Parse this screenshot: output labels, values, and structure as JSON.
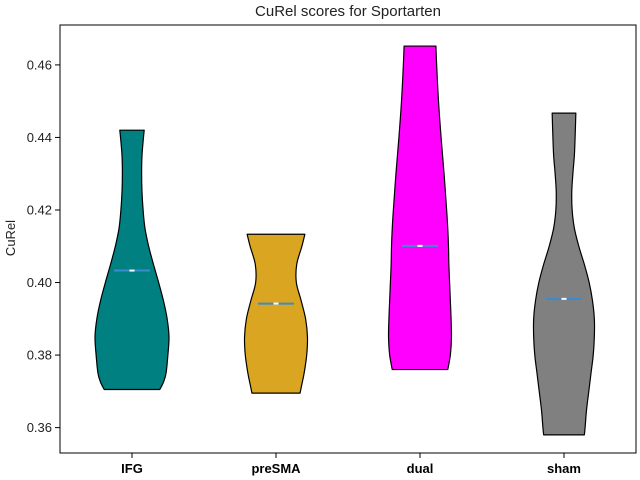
{
  "chart_data": {
    "type": "violin",
    "title": "CuRel scores for Sportarten",
    "xlabel": "",
    "ylabel": "CuRel",
    "categories": [
      "IFG",
      "preSMA",
      "dual",
      "sham"
    ],
    "ylim": [
      0.353,
      0.471
    ],
    "yticks": [
      0.36,
      0.38,
      0.4,
      0.42,
      0.44,
      0.46
    ],
    "ytick_labels": [
      "0.36",
      "0.38",
      "0.40",
      "0.42",
      "0.44",
      "0.46"
    ],
    "grid": false,
    "series": [
      {
        "category": "IFG",
        "color": "#008080",
        "min": 0.3705,
        "max": 0.442,
        "median": 0.4033,
        "profile": [
          [
            0.3705,
            0.75
          ],
          [
            0.3725,
            0.85
          ],
          [
            0.375,
            0.92
          ],
          [
            0.38,
            0.97
          ],
          [
            0.385,
            1.0
          ],
          [
            0.39,
            0.95
          ],
          [
            0.395,
            0.85
          ],
          [
            0.4,
            0.72
          ],
          [
            0.405,
            0.58
          ],
          [
            0.41,
            0.45
          ],
          [
            0.415,
            0.35
          ],
          [
            0.42,
            0.3
          ],
          [
            0.425,
            0.27
          ],
          [
            0.43,
            0.26
          ],
          [
            0.435,
            0.27
          ],
          [
            0.44,
            0.31
          ],
          [
            0.442,
            0.33
          ]
        ]
      },
      {
        "category": "preSMA",
        "color": "#DAA520",
        "min": 0.3695,
        "max": 0.4133,
        "median": 0.3942,
        "profile": [
          [
            0.3695,
            0.65
          ],
          [
            0.372,
            0.7
          ],
          [
            0.375,
            0.76
          ],
          [
            0.38,
            0.83
          ],
          [
            0.385,
            0.85
          ],
          [
            0.39,
            0.8
          ],
          [
            0.395,
            0.68
          ],
          [
            0.4,
            0.55
          ],
          [
            0.405,
            0.56
          ],
          [
            0.41,
            0.7
          ],
          [
            0.4133,
            0.78
          ]
        ]
      },
      {
        "category": "dual",
        "color": "#FF00FF",
        "min": 0.376,
        "max": 0.4652,
        "median": 0.4101,
        "profile": [
          [
            0.376,
            0.75
          ],
          [
            0.38,
            0.82
          ],
          [
            0.385,
            0.85
          ],
          [
            0.39,
            0.84
          ],
          [
            0.395,
            0.82
          ],
          [
            0.4,
            0.8
          ],
          [
            0.405,
            0.78
          ],
          [
            0.41,
            0.77
          ],
          [
            0.415,
            0.75
          ],
          [
            0.42,
            0.72
          ],
          [
            0.43,
            0.65
          ],
          [
            0.44,
            0.57
          ],
          [
            0.45,
            0.5
          ],
          [
            0.46,
            0.45
          ],
          [
            0.4652,
            0.43
          ]
        ]
      },
      {
        "category": "sham",
        "color": "#808080",
        "min": 0.358,
        "max": 0.4467,
        "median": 0.3955,
        "profile": [
          [
            0.358,
            0.55
          ],
          [
            0.36,
            0.57
          ],
          [
            0.365,
            0.61
          ],
          [
            0.37,
            0.67
          ],
          [
            0.375,
            0.73
          ],
          [
            0.38,
            0.79
          ],
          [
            0.385,
            0.82
          ],
          [
            0.39,
            0.82
          ],
          [
            0.395,
            0.77
          ],
          [
            0.4,
            0.68
          ],
          [
            0.405,
            0.55
          ],
          [
            0.41,
            0.4
          ],
          [
            0.415,
            0.28
          ],
          [
            0.42,
            0.22
          ],
          [
            0.425,
            0.21
          ],
          [
            0.43,
            0.24
          ],
          [
            0.435,
            0.28
          ],
          [
            0.44,
            0.3
          ],
          [
            0.4467,
            0.32
          ]
        ]
      }
    ]
  }
}
